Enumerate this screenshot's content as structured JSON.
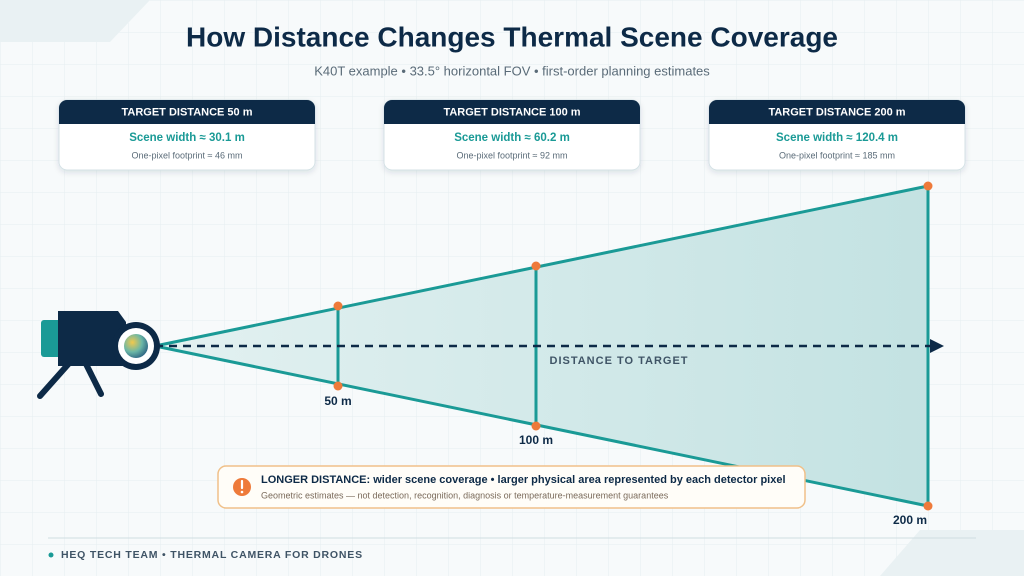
{
  "header": {
    "title": "How Distance Changes Thermal Scene Coverage",
    "subtitle": "K40T example • 33.5° horizontal FOV • first-order planning estimates"
  },
  "cards": [
    {
      "heading": "TARGET DISTANCE 50 m",
      "width": "Scene width ≈ 30.1 m",
      "footprint": "One-pixel footprint ≈ 46 mm"
    },
    {
      "heading": "TARGET DISTANCE 100 m",
      "width": "Scene width ≈ 60.2 m",
      "footprint": "One-pixel footprint ≈ 92 mm"
    },
    {
      "heading": "TARGET DISTANCE 200 m",
      "width": "Scene width ≈ 120.4 m",
      "footprint": "One-pixel footprint ≈ 185 mm"
    }
  ],
  "diagram": {
    "axis_label": "DISTANCE TO TARGET",
    "markers": [
      "50 m",
      "100 m",
      "200 m"
    ]
  },
  "note": {
    "lead": "LONGER DISTANCE:",
    "text": "wider scene coverage • larger physical area represented by each detector pixel",
    "caveat": "Geometric estimates — not detection, recognition, diagnosis or temperature-measurement guarantees"
  },
  "footer": "HEQ TECH TEAM • THERMAL CAMERA FOR DRONES"
}
